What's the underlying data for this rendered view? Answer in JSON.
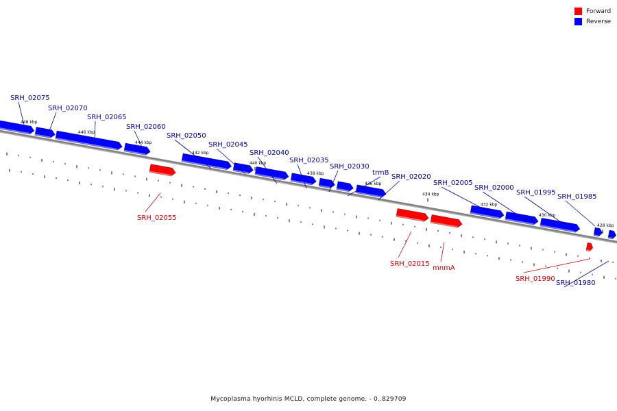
{
  "caption": "Mycoplasma hyorhinis MCLD, complete genome. - 0..829709",
  "legend": [
    {
      "label": "Forward",
      "color": "#ff0000"
    },
    {
      "label": "Reverse",
      "color": "#0000ff"
    }
  ],
  "colors": {
    "forward": "#ff0000",
    "reverse": "#0000ff",
    "forward_label": "#cc0000",
    "reverse_label": "#000099",
    "backbone": "#808080"
  },
  "ticks_kbp": [
    "448 kbp",
    "446 kbp",
    "444 kbp",
    "442 kbp",
    "440 kbp",
    "438 kbp",
    "436 kbp",
    "434 kbp",
    "432 kbp",
    "430 kbp",
    "428 kbp"
  ],
  "features": [
    {
      "name": "SRH_02075",
      "strand": "reverse"
    },
    {
      "name": "SRH_02070",
      "strand": "reverse"
    },
    {
      "name": "SRH_02065",
      "strand": "reverse"
    },
    {
      "name": "SRH_02060",
      "strand": "reverse"
    },
    {
      "name": "SRH_02055",
      "strand": "forward"
    },
    {
      "name": "SRH_02050",
      "strand": "reverse"
    },
    {
      "name": "SRH_02045",
      "strand": "reverse"
    },
    {
      "name": "SRH_02040",
      "strand": "reverse"
    },
    {
      "name": "SRH_02035",
      "strand": "reverse"
    },
    {
      "name": "SRH_02030",
      "strand": "reverse"
    },
    {
      "name": "trmB",
      "strand": "reverse"
    },
    {
      "name": "SRH_02020",
      "strand": "reverse"
    },
    {
      "name": "SRH_02015",
      "strand": "forward"
    },
    {
      "name": "mnmA",
      "strand": "forward"
    },
    {
      "name": "SRH_02005",
      "strand": "reverse"
    },
    {
      "name": "SRH_02000",
      "strand": "reverse"
    },
    {
      "name": "SRH_01995",
      "strand": "reverse"
    },
    {
      "name": "SRH_01990",
      "strand": "forward"
    },
    {
      "name": "SRH_01985",
      "strand": "reverse"
    },
    {
      "name": "SRH_01980",
      "strand": "reverse"
    }
  ]
}
